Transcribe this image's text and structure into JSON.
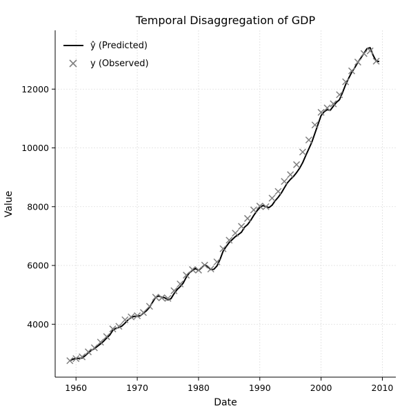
{
  "chart_data": {
    "type": "line",
    "title": "Temporal Disaggregation of GDP",
    "xlabel": "Date",
    "ylabel": "Value",
    "xlim": [
      1956.6,
      2012.2
    ],
    "ylim": [
      2200,
      14000
    ],
    "xticks": [
      1960,
      1970,
      1980,
      1990,
      2000,
      2010
    ],
    "yticks": [
      4000,
      6000,
      8000,
      10000,
      12000
    ],
    "grid": true,
    "legend_position": "top-left",
    "series": [
      {
        "name": "ŷ (Predicted)",
        "style": "line",
        "color": "#000000",
        "x": [
          1959.0,
          1959.5,
          1960.0,
          1960.5,
          1961.0,
          1961.5,
          1962.0,
          1962.5,
          1963.0,
          1963.5,
          1964.0,
          1964.5,
          1965.0,
          1965.5,
          1966.0,
          1966.5,
          1967.0,
          1967.5,
          1968.0,
          1968.5,
          1969.0,
          1969.5,
          1970.0,
          1970.5,
          1971.0,
          1971.5,
          1972.0,
          1972.5,
          1973.0,
          1973.5,
          1974.0,
          1974.5,
          1975.0,
          1975.5,
          1976.0,
          1976.5,
          1977.0,
          1977.5,
          1978.0,
          1978.5,
          1979.0,
          1979.5,
          1980.0,
          1980.5,
          1981.0,
          1981.5,
          1982.0,
          1982.5,
          1983.0,
          1983.5,
          1984.0,
          1984.5,
          1985.0,
          1985.5,
          1986.0,
          1986.5,
          1987.0,
          1987.5,
          1988.0,
          1988.5,
          1989.0,
          1989.5,
          1990.0,
          1990.5,
          1991.0,
          1991.5,
          1992.0,
          1992.5,
          1993.0,
          1993.5,
          1994.0,
          1994.5,
          1995.0,
          1995.5,
          1996.0,
          1996.5,
          1997.0,
          1997.5,
          1998.0,
          1998.5,
          1999.0,
          1999.5,
          2000.0,
          2000.5,
          2001.0,
          2001.5,
          2002.0,
          2002.5,
          2003.0,
          2003.5,
          2004.0,
          2004.5,
          2005.0,
          2005.5,
          2006.0,
          2006.5,
          2007.0,
          2007.5,
          2008.0,
          2008.5,
          2009.0,
          2009.5
        ],
        "y": [
          2760,
          2810,
          2840,
          2840,
          2850,
          2930,
          3030,
          3110,
          3170,
          3250,
          3330,
          3420,
          3530,
          3630,
          3790,
          3860,
          3890,
          3940,
          4040,
          4150,
          4230,
          4270,
          4270,
          4290,
          4380,
          4460,
          4580,
          4750,
          4920,
          4960,
          4920,
          4900,
          4830,
          4870,
          5040,
          5180,
          5280,
          5400,
          5600,
          5750,
          5830,
          5900,
          5830,
          5920,
          6020,
          5960,
          5860,
          5870,
          5980,
          6200,
          6480,
          6640,
          6780,
          6880,
          6980,
          7050,
          7130,
          7300,
          7390,
          7530,
          7700,
          7850,
          7970,
          8040,
          8000,
          7970,
          8050,
          8200,
          8320,
          8460,
          8640,
          8810,
          8930,
          9030,
          9160,
          9310,
          9500,
          9740,
          9970,
          10200,
          10500,
          10800,
          11100,
          11230,
          11300,
          11280,
          11420,
          11550,
          11640,
          11880,
          12150,
          12370,
          12570,
          12730,
          12910,
          13060,
          13220,
          13380,
          13410,
          13150,
          12950,
          12940
        ]
      },
      {
        "name": "y (Observed)",
        "style": "scatter",
        "marker": "x",
        "color": "#7f7f7f",
        "x": [
          1959,
          1960,
          1961,
          1962,
          1963,
          1964,
          1965,
          1966,
          1967,
          1968,
          1969,
          1970,
          1971,
          1972,
          1973,
          1974,
          1975,
          1976,
          1977,
          1978,
          1979,
          1980,
          1981,
          1982,
          1983,
          1984,
          1985,
          1986,
          1987,
          1988,
          1989,
          1990,
          1991,
          1992,
          1993,
          1994,
          1995,
          1996,
          1997,
          1998,
          1999,
          2000,
          2001,
          2002,
          2003,
          2004,
          2005,
          2006,
          2007,
          2008,
          2009
        ],
        "y": [
          2760,
          2830,
          2890,
          3060,
          3200,
          3390,
          3580,
          3840,
          3930,
          4150,
          4250,
          4290,
          4400,
          4610,
          4920,
          4900,
          4880,
          5140,
          5370,
          5670,
          5860,
          5840,
          6010,
          5880,
          6120,
          6570,
          6860,
          7100,
          7330,
          7600,
          7890,
          8020,
          8000,
          8290,
          8520,
          8860,
          9090,
          9430,
          9860,
          10270,
          10780,
          11210,
          11360,
          11500,
          11810,
          12250,
          12620,
          12920,
          13210,
          13300,
          12950
        ]
      }
    ]
  }
}
